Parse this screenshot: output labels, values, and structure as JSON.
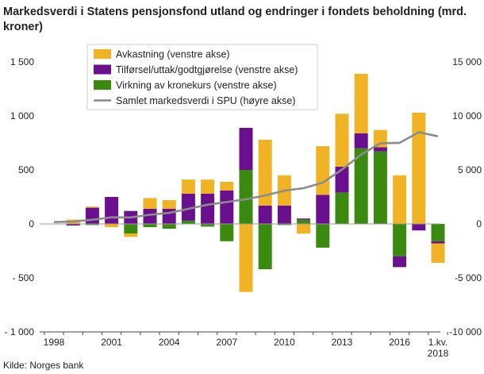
{
  "title": "Markedsverdi i Statens pensjonsfond utland og endringer i fondets beholdning (mrd. kroner)",
  "source": "Kilde: Norges bank",
  "chart_data": {
    "type": "bar",
    "stacked": true,
    "categories": [
      "1998",
      "1999",
      "2000",
      "2001",
      "2002",
      "2003",
      "2004",
      "2005",
      "2006",
      "2007",
      "2008",
      "2009",
      "2010",
      "2011",
      "2012",
      "2013",
      "2014",
      "2015",
      "2016",
      "2017",
      "1.kv. 2018"
    ],
    "x_tick_labels": [
      "1998",
      "2001",
      "2004",
      "2007",
      "2010",
      "2013",
      "2016",
      "1.kv.\n2018"
    ],
    "left_axis": {
      "ylim": [
        -1000,
        1500
      ],
      "ticks": [
        "1 500",
        "1 000",
        "500",
        "0",
        "- 500",
        "- 1 000"
      ],
      "tick_values": [
        1500,
        1000,
        500,
        0,
        -500,
        -1000
      ]
    },
    "right_axis": {
      "ylim": [
        -10000,
        15000
      ],
      "ticks": [
        "15 000",
        "10 000",
        "5 000",
        "0",
        "-5 000",
        "-10 000"
      ],
      "tick_values": [
        15000,
        10000,
        5000,
        0,
        -5000,
        -10000
      ]
    },
    "colors": {
      "Avkastning": "#f0b323",
      "Tilforsel": "#6a0f8e",
      "Kronekurs": "#3a8a10",
      "Samlet": "#8c8c8c"
    },
    "series": [
      {
        "name": "Avkastning (venstre akse)",
        "axis": "left",
        "values": [
          0,
          40,
          10,
          -30,
          -30,
          100,
          80,
          130,
          130,
          80,
          -630,
          610,
          280,
          -90,
          450,
          490,
          550,
          160,
          450,
          1030,
          -180
        ]
      },
      {
        "name": "Tilførsel/uttak/godtgjørelse (venstre akse)",
        "axis": "left",
        "values": [
          0,
          -15,
          150,
          250,
          120,
          140,
          140,
          250,
          280,
          310,
          390,
          170,
          170,
          10,
          270,
          240,
          140,
          40,
          -100,
          -60,
          -20
        ]
      },
      {
        "name": "Virkning av kronekurs (venstre akse)",
        "axis": "left",
        "values": [
          0,
          0,
          -10,
          0,
          -90,
          -30,
          -45,
          30,
          -25,
          -160,
          500,
          -420,
          -10,
          40,
          -220,
          290,
          700,
          670,
          -300,
          0,
          -160
        ]
      },
      {
        "name": "Samlet markedsverdi i SPU (høyre akse)",
        "axis": "right",
        "type": "line",
        "values": [
          170,
          220,
          390,
          610,
          600,
          850,
          1020,
          1400,
          1780,
          2030,
          2280,
          2640,
          3080,
          3310,
          3820,
          5040,
          6430,
          7470,
          7510,
          8490,
          8110
        ]
      }
    ],
    "legend_position": "top-center",
    "grid": false
  }
}
